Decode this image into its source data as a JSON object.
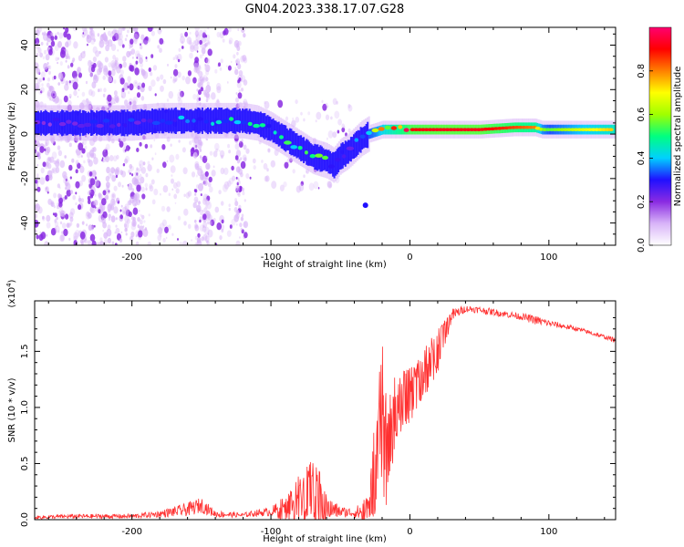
{
  "figure_title": "GN04.2023.338.17.07.G28",
  "colors": {
    "snr_line": "#ff3030",
    "colormap": [
      "#ffffff",
      "#d8b4f8",
      "#8a2be2",
      "#2010ff",
      "#00d0ff",
      "#00ff80",
      "#a0ff00",
      "#ffff00",
      "#ff8000",
      "#ff0000",
      "#ff0070"
    ]
  },
  "chart_data": [
    {
      "type": "heatmap",
      "name": "spectrogram",
      "xlabel": "Height of straight line (km)",
      "ylabel": "Frequency (Hz)",
      "xlim": [
        -270,
        148
      ],
      "ylim": [
        -50,
        48
      ],
      "xticks": [
        "-200",
        "-100",
        "0",
        "100"
      ],
      "yticks": [
        "-40",
        "-20",
        "0",
        "20",
        "40"
      ],
      "ridge": {
        "x": [
          -270,
          -240,
          -200,
          -180,
          -160,
          -140,
          -120,
          -110,
          -100,
          -90,
          -80,
          -70,
          -60,
          -55,
          -50,
          -45,
          -40,
          -35,
          -30,
          -25,
          -20,
          -15,
          -10,
          -5,
          0,
          20,
          50,
          75,
          90,
          95,
          100,
          120,
          148
        ],
        "y": [
          5,
          5,
          5,
          6,
          6,
          6,
          6,
          5,
          2,
          -2,
          -6,
          -10,
          -12,
          -14,
          -10,
          -8,
          -5,
          -2,
          0,
          1,
          2,
          2,
          2,
          2,
          2,
          2,
          2,
          3,
          3,
          2,
          2,
          2,
          2
        ],
        "intensity": [
          0.25,
          0.25,
          0.3,
          0.35,
          0.4,
          0.4,
          0.45,
          0.45,
          0.4,
          0.45,
          0.5,
          0.55,
          0.45,
          0.35,
          0.35,
          0.3,
          0.35,
          0.45,
          0.55,
          0.6,
          0.7,
          0.75,
          0.8,
          0.85,
          0.9,
          0.92,
          0.92,
          0.85,
          0.8,
          0.6,
          0.55,
          0.65,
          0.75
        ]
      },
      "colorbar": {
        "label": "Normalized spectral amplitude",
        "range": [
          0.0,
          1.0
        ],
        "ticks": [
          "0.0",
          "0.2",
          "0.4",
          "0.6",
          "0.8"
        ]
      }
    },
    {
      "type": "line",
      "name": "snr",
      "xlabel": "Height of straight line (km)",
      "ylabel": "SNR (10 * v/v)",
      "y_multiplier": "(x10",
      "y_multiplier_exp": "4",
      "y_multiplier_close": ")",
      "xlim": [
        -270,
        148
      ],
      "ylim": [
        0,
        1.95
      ],
      "xticks": [
        "-200",
        "-100",
        "0",
        "100"
      ],
      "yticks": [
        "0.0",
        "0.5",
        "1.0",
        "1.5"
      ],
      "envelope": {
        "x": [
          -270,
          -240,
          -200,
          -180,
          -160,
          -150,
          -140,
          -120,
          -110,
          -100,
          -90,
          -80,
          -70,
          -65,
          -60,
          -50,
          -40,
          -30,
          -25,
          -22,
          -20,
          -17,
          -10,
          0,
          10,
          20,
          30,
          40,
          50,
          60,
          80,
          90,
          100,
          120,
          148
        ],
        "base": [
          0.02,
          0.03,
          0.03,
          0.05,
          0.09,
          0.13,
          0.05,
          0.04,
          0.06,
          0.07,
          0.1,
          0.17,
          0.22,
          0.18,
          0.1,
          0.07,
          0.06,
          0.08,
          0.5,
          0.85,
          0.9,
          0.6,
          1.0,
          1.1,
          1.3,
          1.5,
          1.82,
          1.88,
          1.87,
          1.85,
          1.81,
          1.78,
          1.75,
          1.7,
          1.6
        ],
        "noise": [
          0.015,
          0.02,
          0.02,
          0.03,
          0.06,
          0.07,
          0.03,
          0.02,
          0.03,
          0.04,
          0.12,
          0.22,
          0.32,
          0.25,
          0.12,
          0.05,
          0.04,
          0.15,
          0.45,
          0.6,
          0.8,
          0.5,
          0.3,
          0.25,
          0.22,
          0.2,
          0.06,
          0.03,
          0.03,
          0.03,
          0.03,
          0.04,
          0.03,
          0.02,
          0.02
        ]
      }
    }
  ]
}
